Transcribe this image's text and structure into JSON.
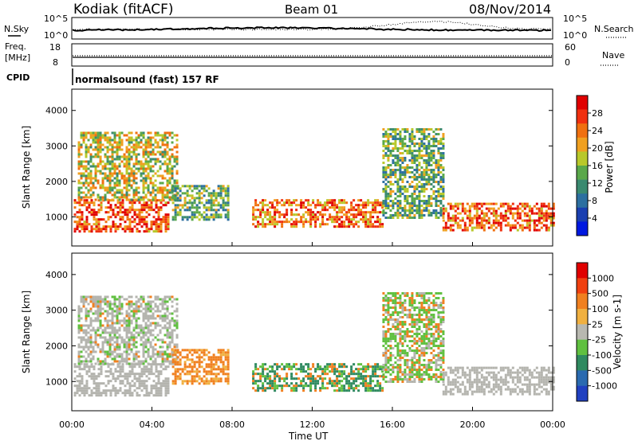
{
  "header": {
    "station": "Kodiak (fitACF)",
    "beam": "Beam 01",
    "date": "08/Nov/2014"
  },
  "noise_panel": {
    "left_label": "N.Sky",
    "right_label": "N.Search",
    "left_ticks": [
      "10^5",
      "10^0"
    ],
    "right_ticks": [
      "10^5",
      "10^0"
    ]
  },
  "freq_panel": {
    "left_label_1": "Freq.",
    "left_label_2": "[MHz]",
    "right_label": "Nave",
    "left_ticks": [
      "18",
      "8"
    ],
    "right_ticks": [
      "60",
      "0"
    ]
  },
  "cpid": {
    "label": "CPID",
    "value": "normalsound (fast) 157 RF"
  },
  "colors": {
    "power_scale": [
      "#0018e0",
      "#1a3fb0",
      "#2c6fa0",
      "#3a8a70",
      "#5aa84a",
      "#b8c82a",
      "#f0a020",
      "#f07010",
      "#f03010",
      "#e00000"
    ],
    "velocity_scale": [
      "#2040c0",
      "#2a6ab0",
      "#2f8a60",
      "#60c040",
      "#b8b8b0",
      "#f0b040",
      "#f08020",
      "#f04010",
      "#e00000"
    ],
    "ground_scatter": "#b4b4ae"
  },
  "chart_data": [
    {
      "type": "heatmap",
      "name": "power",
      "x_range": [
        "00:00",
        "00:00"
      ],
      "ylabel": "Slant Range [km]",
      "ylim": [
        180,
        4600
      ],
      "y_ticks": [
        1000,
        2000,
        3000,
        4000
      ],
      "colorbar": {
        "label": "Power [dB]",
        "ticks": [
          28,
          24,
          20,
          16,
          12,
          8,
          4
        ],
        "range": [
          0,
          32
        ]
      },
      "echo_regions": [
        {
          "t": [
            0.1,
            4.8
          ],
          "r": [
            600,
            1500
          ],
          "level": 26
        },
        {
          "t": [
            0.3,
            5.2
          ],
          "r": [
            1500,
            3400
          ],
          "level": 18
        },
        {
          "t": [
            5.0,
            7.8
          ],
          "r": [
            900,
            1900
          ],
          "level": 14
        },
        {
          "t": [
            9.0,
            15.5
          ],
          "r": [
            700,
            1500
          ],
          "level": 24
        },
        {
          "t": [
            15.5,
            18.5
          ],
          "r": [
            1000,
            3500
          ],
          "level": 14
        },
        {
          "t": [
            18.5,
            24.0
          ],
          "r": [
            600,
            1400
          ],
          "level": 25
        }
      ]
    },
    {
      "type": "heatmap",
      "name": "velocity",
      "x_range": [
        "00:00",
        "00:00"
      ],
      "ylabel": "Slant Range [km]",
      "ylim": [
        180,
        4600
      ],
      "y_ticks": [
        1000,
        2000,
        3000,
        4000
      ],
      "xlabel": "Time UT",
      "x_ticks": [
        "00:00",
        "04:00",
        "08:00",
        "12:00",
        "16:00",
        "20:00",
        "00:00"
      ],
      "colorbar": {
        "label": "Velocity [m s-1]",
        "ticks": [
          1000,
          500,
          100,
          25,
          -25,
          -100,
          -500,
          -1000
        ]
      }
    }
  ]
}
